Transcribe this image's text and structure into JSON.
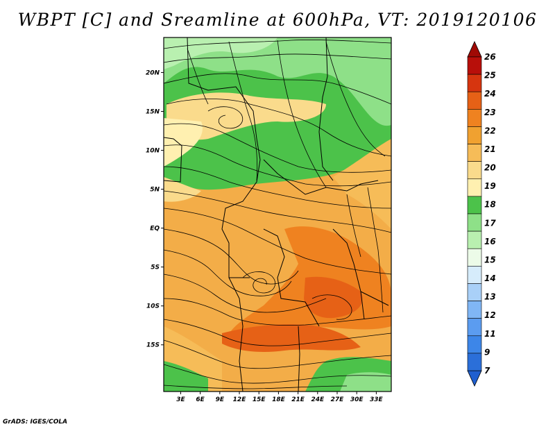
{
  "title": "WBPT [C] and Sreamline at 600hPa, VT: 2019120106",
  "credit": "GrADS: IGES/COLA",
  "map": {
    "lat_labels": [
      "20N",
      "15N",
      "10N",
      "5N",
      "EQ",
      "5S",
      "10S",
      "15S"
    ],
    "lon_labels": [
      "3E",
      "6E",
      "9E",
      "12E",
      "15E",
      "18E",
      "21E",
      "24E",
      "27E",
      "30E",
      "33E"
    ],
    "lat_range": [
      -21,
      24.5
    ],
    "lon_range": [
      0.4,
      35.3
    ]
  },
  "colorbar": {
    "labels": [
      "7",
      "9",
      "11",
      "12",
      "13",
      "14",
      "15",
      "16",
      "17",
      "18",
      "19",
      "20",
      "21",
      "22",
      "23",
      "24",
      "25",
      "26"
    ],
    "colors": [
      "#2b6fd9",
      "#3d86e8",
      "#5b9cf0",
      "#80b6f5",
      "#a9d0f8",
      "#d6ecfb",
      "#ecfbe8",
      "#b9f0b0",
      "#8ee088",
      "#4cc24a",
      "#fff0b0",
      "#fadb8c",
      "#f6bc58",
      "#f0a130",
      "#ef8220",
      "#e66116",
      "#d6350f",
      "#b80f0a"
    ],
    "over_color": "#a00a05",
    "under_color": "#1f5fcf"
  }
}
